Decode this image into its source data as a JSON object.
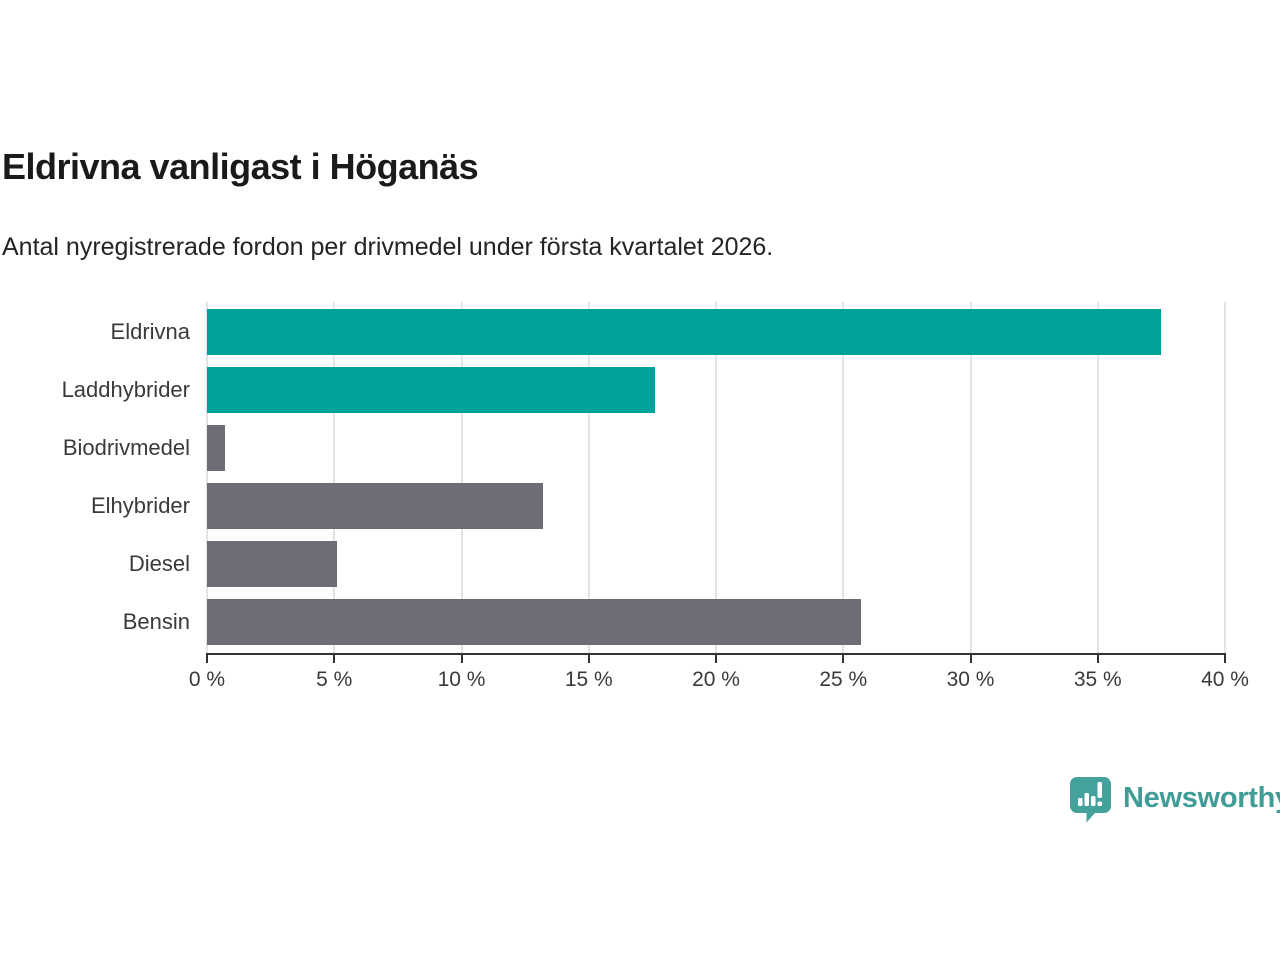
{
  "header": {
    "title": "Eldrivna vanligast i Höganäs",
    "subtitle": "Antal nyregistrerade fordon per drivmedel under första kvartalet 2026."
  },
  "chart_data": {
    "type": "bar",
    "orientation": "horizontal",
    "title": "Eldrivna vanligast i Höganäs",
    "subtitle": "Antal nyregistrerade fordon per drivmedel under första kvartalet 2026.",
    "categories": [
      "Eldrivna",
      "Laddhybrider",
      "Biodrivmedel",
      "Elhybrider",
      "Diesel",
      "Bensin"
    ],
    "values": [
      37.5,
      17.6,
      0.7,
      13.2,
      5.1,
      25.7
    ],
    "unit": "%",
    "xlim": [
      0,
      40
    ],
    "x_ticks": [
      0,
      5,
      10,
      15,
      20,
      25,
      30,
      35,
      40
    ],
    "x_tick_labels": [
      "0 %",
      "5 %",
      "10 %",
      "15 %",
      "20 %",
      "25 %",
      "30 %",
      "35 %",
      "40 %"
    ],
    "bar_colors": [
      "#00a39b",
      "#00a39b",
      "#6e6d75",
      "#6e6d75",
      "#6e6d75",
      "#6e6d75"
    ],
    "highlight_color": "#00a39b",
    "default_color": "#6e6d75",
    "gridline_color": "#e3e3e3",
    "axis_color": "#333333",
    "grid": true,
    "legend": false,
    "ylabel": "",
    "xlabel": ""
  },
  "footer": {
    "brand": "Newsworthy",
    "brand_color": "#3f9c96",
    "logo_icon": "newsworthy-bubble-bar-chart-icon",
    "logo_color": "#45a19b"
  }
}
